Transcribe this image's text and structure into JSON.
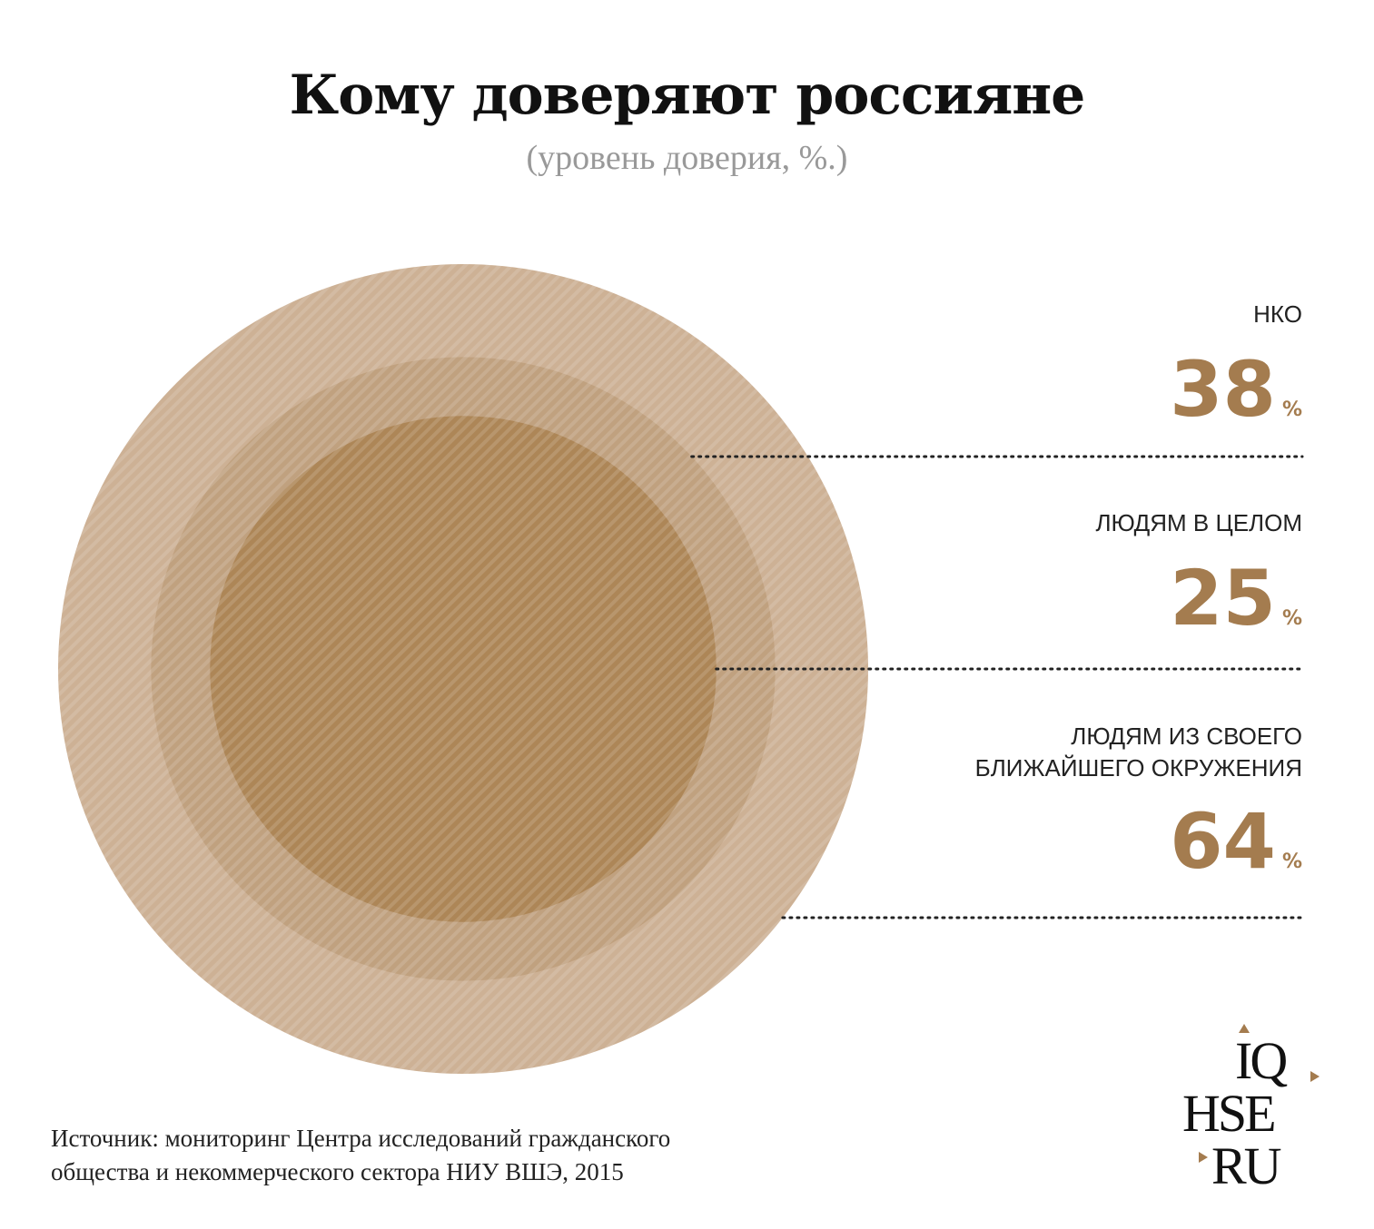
{
  "title": "Кому доверяют россияне",
  "subtitle": "(уровень доверия, %.)",
  "colors": {
    "outer": "#cdb195",
    "middle": "#c0a17f",
    "inner": "#ad8657",
    "value_text": "#a47c4f",
    "leader_dots": "#222222"
  },
  "chart_data": {
    "type": "nested-circles",
    "title": "Кому доверяют россияне",
    "subtitle": "(уровень доверия, %.)",
    "unit": "%",
    "items": [
      {
        "label_lines": [
          "НКО"
        ],
        "value": 38,
        "pct_label": "%"
      },
      {
        "label_lines": [
          "ЛЮДЯМ В ЦЕЛОМ"
        ],
        "value": 25,
        "pct_label": "%"
      },
      {
        "label_lines": [
          "ЛЮДЯМ ИЗ СВОЕГО",
          "БЛИЖАЙШЕГО ОКРУЖЕНИЯ"
        ],
        "value": 64,
        "pct_label": "%"
      }
    ]
  },
  "source_lines": [
    "Источник: мониторинг Центра исследований гражданского",
    "общества и некоммерческого сектора НИУ ВШЭ, 2015"
  ],
  "logo": {
    "line1": "IQ",
    "line2": "HSE",
    "line3": "RU"
  }
}
